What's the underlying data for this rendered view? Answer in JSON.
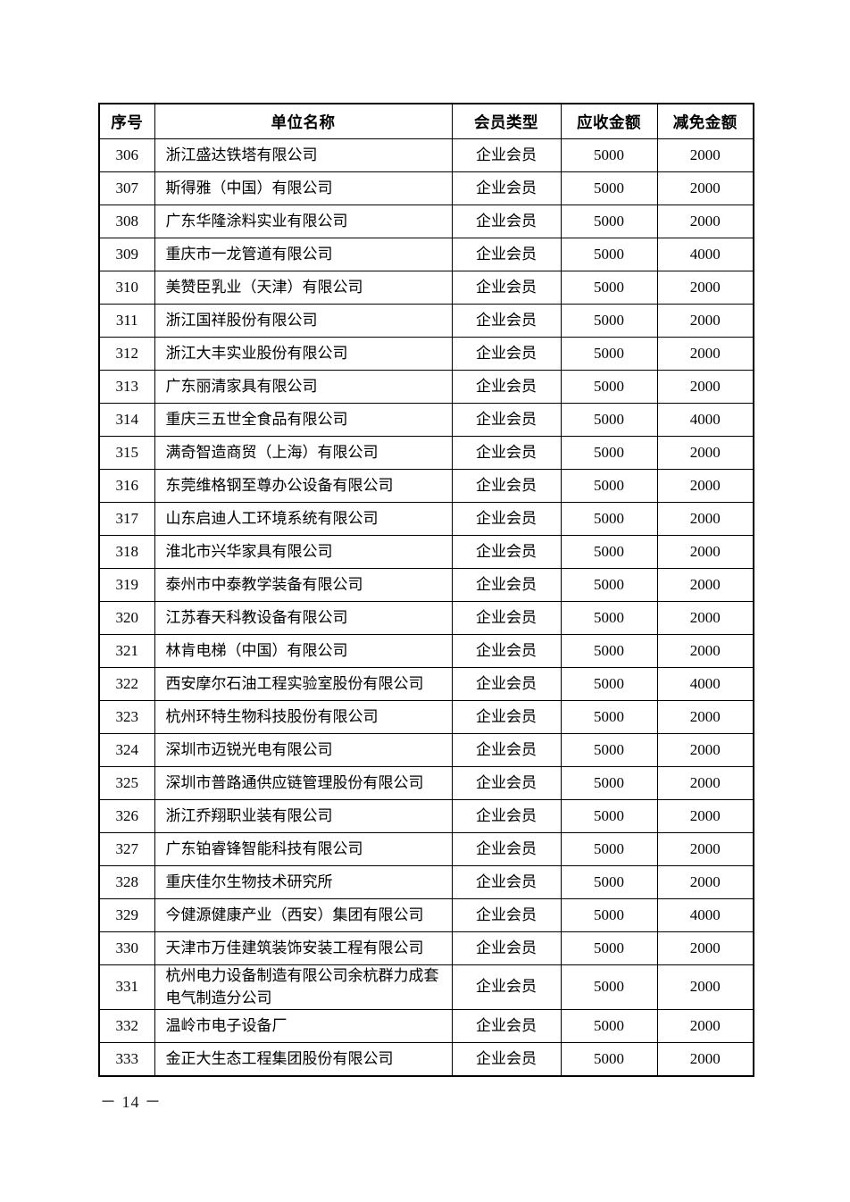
{
  "page": {
    "footer_page_number": "－ 14 －"
  },
  "table": {
    "columns": [
      "序号",
      "单位名称",
      "会员类型",
      "应收金额",
      "减免金额"
    ],
    "rows": [
      [
        "306",
        "浙江盛达铁塔有限公司",
        "企业会员",
        "5000",
        "2000"
      ],
      [
        "307",
        "斯得雅（中国）有限公司",
        "企业会员",
        "5000",
        "2000"
      ],
      [
        "308",
        "广东华隆涂料实业有限公司",
        "企业会员",
        "5000",
        "2000"
      ],
      [
        "309",
        "重庆市一龙管道有限公司",
        "企业会员",
        "5000",
        "4000"
      ],
      [
        "310",
        "美赞臣乳业（天津）有限公司",
        "企业会员",
        "5000",
        "2000"
      ],
      [
        "311",
        "浙江国祥股份有限公司",
        "企业会员",
        "5000",
        "2000"
      ],
      [
        "312",
        "浙江大丰实业股份有限公司",
        "企业会员",
        "5000",
        "2000"
      ],
      [
        "313",
        "广东丽清家具有限公司",
        "企业会员",
        "5000",
        "2000"
      ],
      [
        "314",
        "重庆三五世全食品有限公司",
        "企业会员",
        "5000",
        "4000"
      ],
      [
        "315",
        "满奇智造商贸（上海）有限公司",
        "企业会员",
        "5000",
        "2000"
      ],
      [
        "316",
        "东莞维格钢至尊办公设备有限公司",
        "企业会员",
        "5000",
        "2000"
      ],
      [
        "317",
        "山东启迪人工环境系统有限公司",
        "企业会员",
        "5000",
        "2000"
      ],
      [
        "318",
        "淮北市兴华家具有限公司",
        "企业会员",
        "5000",
        "2000"
      ],
      [
        "319",
        "泰州市中泰教学装备有限公司",
        "企业会员",
        "5000",
        "2000"
      ],
      [
        "320",
        "江苏春天科教设备有限公司",
        "企业会员",
        "5000",
        "2000"
      ],
      [
        "321",
        "林肯电梯（中国）有限公司",
        "企业会员",
        "5000",
        "2000"
      ],
      [
        "322",
        "西安摩尔石油工程实验室股份有限公司",
        "企业会员",
        "5000",
        "4000"
      ],
      [
        "323",
        "杭州环特生物科技股份有限公司",
        "企业会员",
        "5000",
        "2000"
      ],
      [
        "324",
        "深圳市迈锐光电有限公司",
        "企业会员",
        "5000",
        "2000"
      ],
      [
        "325",
        "深圳市普路通供应链管理股份有限公司",
        "企业会员",
        "5000",
        "2000"
      ],
      [
        "326",
        "浙江乔翔职业装有限公司",
        "企业会员",
        "5000",
        "2000"
      ],
      [
        "327",
        "广东铂睿锋智能科技有限公司",
        "企业会员",
        "5000",
        "2000"
      ],
      [
        "328",
        "重庆佳尔生物技术研究所",
        "企业会员",
        "5000",
        "2000"
      ],
      [
        "329",
        "今健源健康产业（西安）集团有限公司",
        "企业会员",
        "5000",
        "4000"
      ],
      [
        "330",
        "天津市万佳建筑装饰安装工程有限公司",
        "企业会员",
        "5000",
        "2000"
      ],
      [
        "331",
        "杭州电力设备制造有限公司余杭群力成套电气制造分公司",
        "企业会员",
        "5000",
        "2000"
      ],
      [
        "332",
        "温岭市电子设备厂",
        "企业会员",
        "5000",
        "2000"
      ],
      [
        "333",
        "金正大生态工程集团股份有限公司",
        "企业会员",
        "5000",
        "2000"
      ]
    ]
  }
}
